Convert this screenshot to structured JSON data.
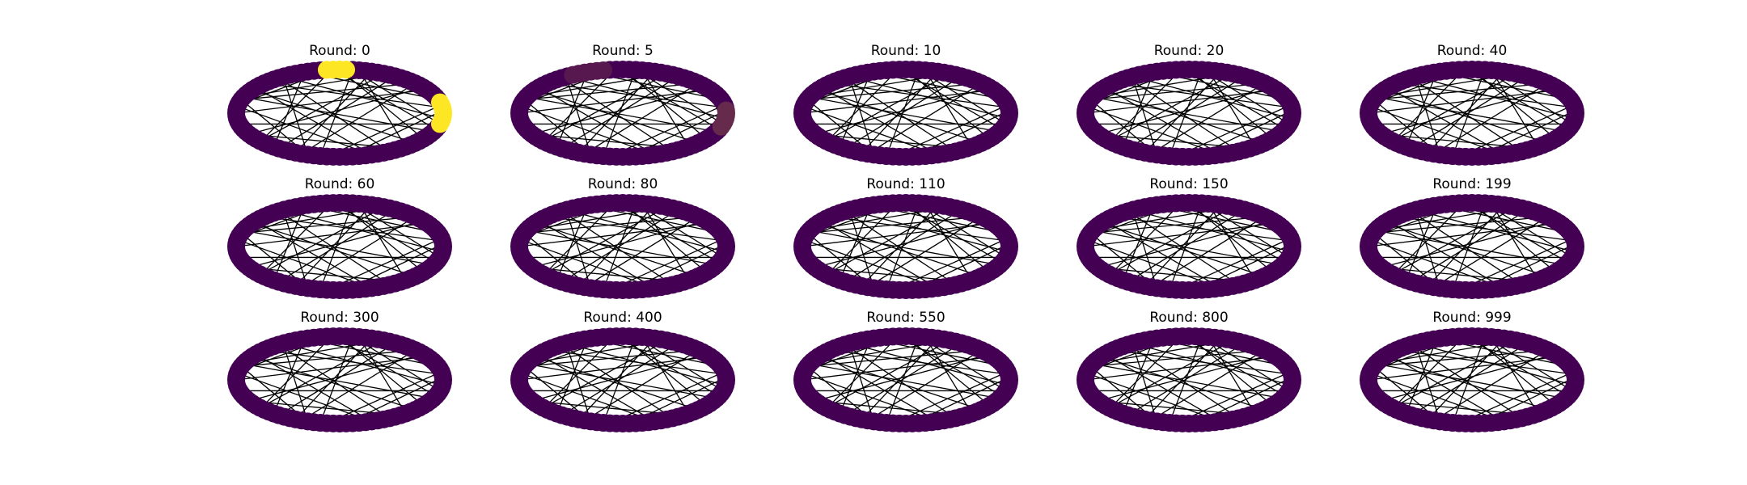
{
  "figure": {
    "panels": [
      {
        "title": "Round: 0",
        "highlight": [
          {
            "from": 0.24,
            "to": 0.275,
            "level": 1.0
          },
          {
            "from": 0.955,
            "to": 1.045,
            "level": 1.0
          }
        ]
      },
      {
        "title": "Round: 5",
        "highlight": [
          {
            "from": 0.95,
            "to": 1.01,
            "level": 0.18
          },
          {
            "from": 0.28,
            "to": 0.33,
            "level": 0.1
          }
        ]
      },
      {
        "title": "Round: 10",
        "highlight": []
      },
      {
        "title": "Round: 20",
        "highlight": []
      },
      {
        "title": "Round: 40",
        "highlight": []
      },
      {
        "title": "Round: 60",
        "highlight": []
      },
      {
        "title": "Round: 80",
        "highlight": []
      },
      {
        "title": "Round: 110",
        "highlight": []
      },
      {
        "title": "Round: 150",
        "highlight": []
      },
      {
        "title": "Round: 199",
        "highlight": []
      },
      {
        "title": "Round: 300",
        "highlight": []
      },
      {
        "title": "Round: 400",
        "highlight": []
      },
      {
        "title": "Round: 550",
        "highlight": []
      },
      {
        "title": "Round: 800",
        "highlight": []
      },
      {
        "title": "Round: 999",
        "highlight": []
      }
    ],
    "node_color_low": "#440154",
    "node_color_high": "#fde725",
    "edge_color": "#000000"
  }
}
